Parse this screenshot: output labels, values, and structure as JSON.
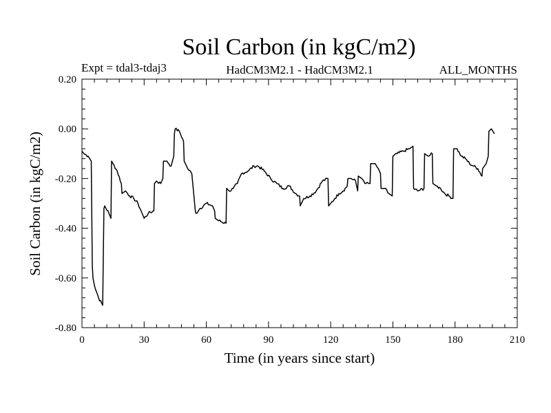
{
  "chart_data": {
    "type": "line",
    "title": "Soil Carbon (in kgC/m2)",
    "subtitle_left": "Expt = tdal3-tdaj3",
    "subtitle_center": "HadCM3M2.1 - HadCM3M2.1",
    "subtitle_right": "ALL_MONTHS",
    "xlabel": "Time (in years since start)",
    "ylabel": "Soil Carbon (in kgC/m2)",
    "xlim": [
      0,
      210
    ],
    "ylim": [
      -0.8,
      0.2
    ],
    "xticks": [
      0,
      30,
      60,
      90,
      120,
      150,
      180,
      210
    ],
    "xtick_labels": [
      "0",
      "30",
      "60",
      "90",
      "120",
      "150",
      "180",
      "210"
    ],
    "yticks": [
      0.2,
      0.0,
      -0.2,
      -0.4,
      -0.6,
      -0.8
    ],
    "ytick_labels": [
      "0.20",
      "0.00",
      "-0.20",
      "-0.40",
      "-0.60",
      "-0.80"
    ],
    "grid": false,
    "line_color": "#000000",
    "series": [
      {
        "x": [
          0,
          1,
          3,
          4.5,
          5,
          5.3,
          6,
          8,
          10,
          10.3,
          10.6,
          11,
          13,
          14,
          14.3,
          15,
          17,
          19,
          19.3,
          21,
          23,
          25,
          27,
          29,
          30,
          32,
          34.7,
          35,
          36,
          38,
          39,
          39.3,
          41,
          43,
          44.3,
          44.6,
          45,
          47,
          49,
          49.3,
          51,
          53,
          54.7,
          55,
          57,
          60,
          63,
          64,
          64.3,
          66,
          69.5,
          69.8,
          71,
          73,
          75,
          77,
          80,
          83,
          85,
          88,
          91,
          94,
          97,
          100,
          103,
          105,
          105.3,
          107,
          110,
          113,
          116,
          118.7,
          119,
          120,
          122,
          124,
          126,
          128,
          128.3,
          130,
          132,
          133,
          133.3,
          135,
          137,
          139,
          139.3,
          141,
          143,
          144,
          144.3,
          146,
          148,
          149.7,
          150,
          152,
          155,
          158,
          159.7,
          160,
          162,
          165,
          165.3,
          167,
          169,
          169.3,
          171,
          173,
          175,
          177,
          179,
          179.3,
          181,
          183,
          185,
          187,
          189,
          191,
          193,
          193.3,
          195,
          196,
          196.3,
          197.5,
          199
        ],
        "y": [
          -0.09,
          -0.1,
          -0.11,
          -0.13,
          -0.55,
          -0.6,
          -0.63,
          -0.68,
          -0.71,
          -0.51,
          -0.32,
          -0.31,
          -0.34,
          -0.36,
          -0.13,
          -0.14,
          -0.17,
          -0.22,
          -0.26,
          -0.25,
          -0.27,
          -0.28,
          -0.3,
          -0.34,
          -0.36,
          -0.34,
          -0.33,
          -0.22,
          -0.21,
          -0.22,
          -0.2,
          -0.13,
          -0.13,
          -0.15,
          -0.11,
          -0.02,
          0.0,
          -0.01,
          -0.05,
          -0.13,
          -0.16,
          -0.18,
          -0.33,
          -0.34,
          -0.32,
          -0.3,
          -0.31,
          -0.33,
          -0.36,
          -0.37,
          -0.38,
          -0.24,
          -0.25,
          -0.24,
          -0.22,
          -0.18,
          -0.17,
          -0.15,
          -0.15,
          -0.17,
          -0.2,
          -0.22,
          -0.24,
          -0.23,
          -0.26,
          -0.27,
          -0.31,
          -0.28,
          -0.27,
          -0.25,
          -0.21,
          -0.2,
          -0.31,
          -0.3,
          -0.28,
          -0.26,
          -0.25,
          -0.23,
          -0.2,
          -0.2,
          -0.21,
          -0.25,
          -0.19,
          -0.2,
          -0.22,
          -0.22,
          -0.14,
          -0.14,
          -0.16,
          -0.18,
          -0.24,
          -0.24,
          -0.26,
          -0.27,
          -0.11,
          -0.1,
          -0.09,
          -0.08,
          -0.07,
          -0.24,
          -0.25,
          -0.24,
          -0.1,
          -0.11,
          -0.1,
          -0.22,
          -0.23,
          -0.24,
          -0.26,
          -0.27,
          -0.28,
          -0.08,
          -0.08,
          -0.11,
          -0.12,
          -0.14,
          -0.15,
          -0.16,
          -0.19,
          -0.16,
          -0.14,
          -0.11,
          -0.01,
          0.0,
          -0.02
        ]
      }
    ]
  }
}
